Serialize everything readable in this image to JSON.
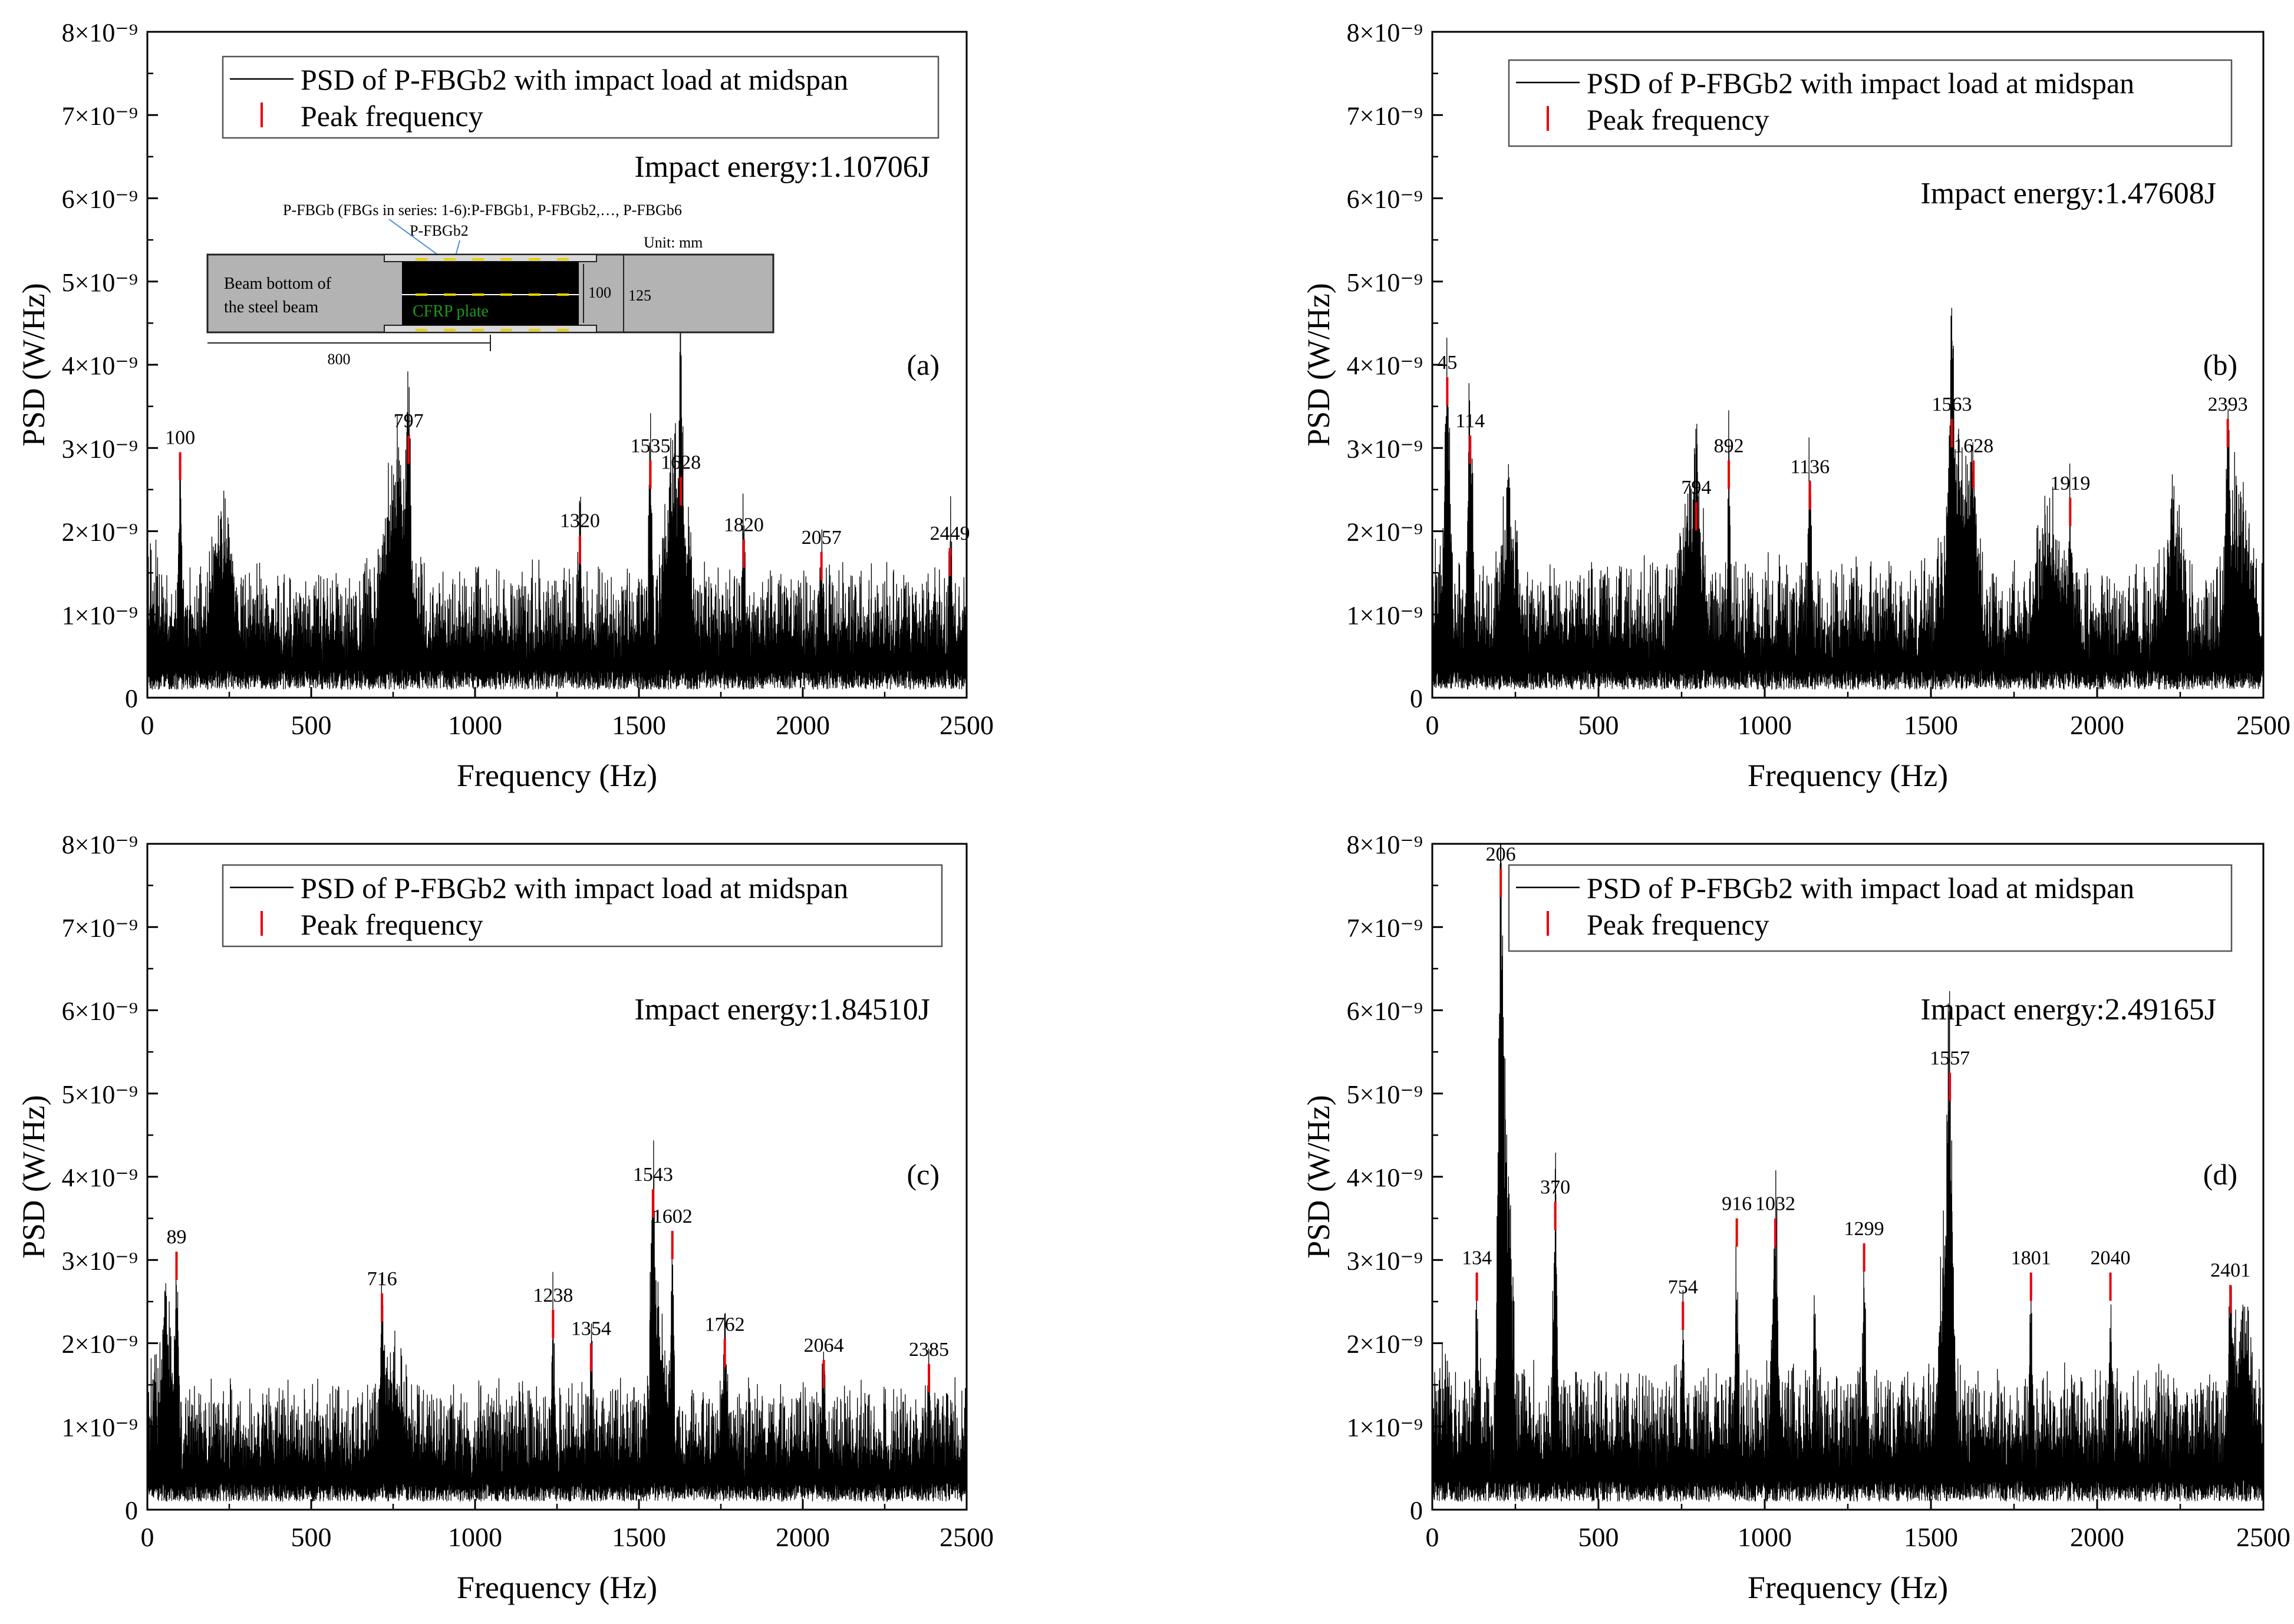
{
  "chart_data": [
    {
      "id": "a",
      "type": "line",
      "panel_label": "(a)",
      "xlabel": "Frequency (Hz)",
      "ylabel": "PSD (W/Hz)",
      "xlim": [
        0,
        2500
      ],
      "ylim": [
        0,
        8e-09
      ],
      "xticks": [
        "0",
        "500",
        "1000",
        "1500",
        "2000",
        "2500"
      ],
      "yticks": [
        "0",
        "1×10⁻⁹",
        "2×10⁻⁹",
        "3×10⁻⁹",
        "4×10⁻⁹",
        "5×10⁻⁹",
        "6×10⁻⁹",
        "7×10⁻⁹",
        "8×10⁻⁹"
      ],
      "legend": {
        "series": "PSD of P-FBGb2 with impact load at midspan",
        "peaks": "Peak frequency",
        "placement": "top-left"
      },
      "impact_energy_text": "Impact energy:1.10706J",
      "series": [
        {
          "name": "PSD of P-FBGb2 with impact load at midspan",
          "color": "#000000",
          "baseline": 7e-10,
          "noise": 5.5e-10,
          "resonances": [
            [
              100,
              2.6e-09,
              6
            ],
            [
              230,
              1.3e-09,
              30
            ],
            [
              760,
              2e-09,
              45
            ],
            [
              797,
              2.7e-09,
              6
            ],
            [
              1320,
              1.5e-09,
              5
            ],
            [
              1535,
              2.5e-09,
              6
            ],
            [
              1615,
              2e-09,
              40
            ],
            [
              1628,
              2.2e-09,
              6
            ],
            [
              1820,
              1.4e-09,
              5
            ],
            [
              2057,
              1.2e-09,
              5
            ],
            [
              2449,
              1.4e-09,
              5
            ]
          ]
        }
      ],
      "peaks": [
        {
          "f": 100,
          "v": 2.95e-09
        },
        {
          "f": 797,
          "v": 3.15e-09
        },
        {
          "f": 1320,
          "v": 1.95e-09
        },
        {
          "f": 1535,
          "v": 2.85e-09
        },
        {
          "f": 1628,
          "v": 2.65e-09
        },
        {
          "f": 1820,
          "v": 1.9e-09
        },
        {
          "f": 2057,
          "v": 1.75e-09
        },
        {
          "f": 2449,
          "v": 1.8e-09
        }
      ],
      "peak_labels": [
        "100",
        "797",
        "1320",
        "1535",
        "1628",
        "1820",
        "2057",
        "2449"
      ],
      "inset": {
        "title": "P-FBGb (FBGs in series: 1-6):P-FBGb1,  P-FBGb2,…,  P-FBGb6",
        "sensor": "P-FBGb2",
        "unit": "Unit: mm",
        "beam_line1": "Beam bottom of",
        "beam_line2": "the steel beam",
        "plate": "CFRP plate",
        "dim_inner": "100",
        "dim_outer": "125",
        "dim_length": "800",
        "beam_color": "#b3b3b3",
        "plate_color": "#000000",
        "plate_text_color": "#1a9a1a",
        "sensor_color": "#e8d000"
      }
    },
    {
      "id": "b",
      "type": "line",
      "panel_label": "(b)",
      "xlabel": "Frequency (Hz)",
      "ylabel": "PSD (W/Hz)",
      "xlim": [
        0,
        2500
      ],
      "ylim": [
        0,
        8e-09
      ],
      "xticks": [
        "0",
        "500",
        "1000",
        "1500",
        "2000",
        "2500"
      ],
      "yticks": [
        "0",
        "1×10⁻⁹",
        "2×10⁻⁹",
        "3×10⁻⁹",
        "4×10⁻⁹",
        "5×10⁻⁹",
        "6×10⁻⁹",
        "7×10⁻⁹",
        "8×10⁻⁹"
      ],
      "legend": {
        "series": "PSD of P-FBGb2 with impact load at midspan",
        "peaks": "Peak frequency",
        "placement": "top-right"
      },
      "impact_energy_text": "Impact energy:1.47608J",
      "series": [
        {
          "name": "PSD of P-FBGb2 with impact load at midspan",
          "color": "#000000",
          "baseline": 7e-10,
          "noise": 6e-10,
          "resonances": [
            [
              45,
              3.2e-09,
              10
            ],
            [
              114,
              2.6e-09,
              10
            ],
            [
              230,
              1.4e-09,
              25
            ],
            [
              780,
              1.4e-09,
              40
            ],
            [
              794,
              1.7e-09,
              5
            ],
            [
              892,
              2.4e-09,
              4
            ],
            [
              1136,
              2.2e-09,
              6
            ],
            [
              1563,
              2.7e-09,
              8
            ],
            [
              1580,
              1.9e-09,
              40
            ],
            [
              1628,
              1.5e-09,
              20
            ],
            [
              1860,
              1.2e-09,
              40
            ],
            [
              1919,
              1.6e-09,
              6
            ],
            [
              2230,
              1.4e-09,
              25
            ],
            [
              2393,
              2.4e-09,
              6
            ],
            [
              2430,
              1.6e-09,
              40
            ]
          ]
        }
      ],
      "peaks": [
        {
          "f": 45,
          "v": 3.85e-09
        },
        {
          "f": 114,
          "v": 3.15e-09
        },
        {
          "f": 794,
          "v": 2.35e-09
        },
        {
          "f": 892,
          "v": 2.85e-09
        },
        {
          "f": 1136,
          "v": 2.6e-09
        },
        {
          "f": 1563,
          "v": 3.35e-09
        },
        {
          "f": 1628,
          "v": 2.85e-09
        },
        {
          "f": 1919,
          "v": 2.4e-09
        },
        {
          "f": 2393,
          "v": 3.35e-09
        }
      ],
      "peak_labels": [
        "45",
        "114",
        "794",
        "892",
        "1136",
        "1563",
        "1628",
        "1919",
        "2393"
      ]
    },
    {
      "id": "c",
      "type": "line",
      "panel_label": "(c)",
      "xlabel": "Frequency (Hz)",
      "ylabel": "PSD (W/Hz)",
      "xlim": [
        0,
        2500
      ],
      "ylim": [
        0,
        8e-09
      ],
      "xticks": [
        "0",
        "500",
        "1000",
        "1500",
        "2000",
        "2500"
      ],
      "yticks": [
        "0",
        "1×10⁻⁹",
        "2×10⁻⁹",
        "3×10⁻⁹",
        "4×10⁻⁹",
        "5×10⁻⁹",
        "6×10⁻⁹",
        "7×10⁻⁹",
        "8×10⁻⁹"
      ],
      "legend": {
        "series": "PSD of P-FBGb2 with impact load at midspan",
        "peaks": "Peak frequency",
        "placement": "top-right"
      },
      "impact_energy_text": "Impact energy:1.84510J",
      "series": [
        {
          "name": "PSD of P-FBGb2 with impact load at midspan",
          "color": "#000000",
          "baseline": 6.5e-10,
          "noise": 5.5e-10,
          "resonances": [
            [
              60,
              1.6e-09,
              20
            ],
            [
              89,
              2e-09,
              6
            ],
            [
              716,
              1.8e-09,
              6
            ],
            [
              750,
              1e-09,
              40
            ],
            [
              1238,
              1.7e-09,
              5
            ],
            [
              1354,
              1.2e-09,
              5
            ],
            [
              1543,
              3e-09,
              8
            ],
            [
              1560,
              1.5e-09,
              30
            ],
            [
              1602,
              2.3e-09,
              6
            ],
            [
              1762,
              1.2e-09,
              5
            ],
            [
              2064,
              1e-09,
              5
            ],
            [
              2385,
              1e-09,
              5
            ]
          ]
        }
      ],
      "peaks": [
        {
          "f": 89,
          "v": 3.1e-09
        },
        {
          "f": 716,
          "v": 2.6e-09
        },
        {
          "f": 1238,
          "v": 2.4e-09
        },
        {
          "f": 1354,
          "v": 2e-09
        },
        {
          "f": 1543,
          "v": 3.85e-09
        },
        {
          "f": 1602,
          "v": 3.35e-09
        },
        {
          "f": 1762,
          "v": 2.05e-09
        },
        {
          "f": 2064,
          "v": 1.8e-09
        },
        {
          "f": 2385,
          "v": 1.75e-09
        }
      ],
      "peak_labels": [
        "89",
        "716",
        "1238",
        "1354",
        "1543",
        "1602",
        "1762",
        "2064",
        "2385"
      ]
    },
    {
      "id": "d",
      "type": "line",
      "panel_label": "(d)",
      "xlabel": "Frequency (Hz)",
      "ylabel": "PSD (W/Hz)",
      "xlim": [
        0,
        2500
      ],
      "ylim": [
        0,
        8e-09
      ],
      "xticks": [
        "0",
        "500",
        "1000",
        "1500",
        "2000",
        "2500"
      ],
      "yticks": [
        "0",
        "1×10⁻⁹",
        "2×10⁻⁹",
        "3×10⁻⁹",
        "4×10⁻⁹",
        "5×10⁻⁹",
        "6×10⁻⁹",
        "7×10⁻⁹",
        "8×10⁻⁹"
      ],
      "legend": {
        "series": "PSD of P-FBGb2 with impact load at midspan",
        "peaks": "Peak frequency",
        "placement": "top-right"
      },
      "impact_energy_text": "Impact energy:2.49165J",
      "series": [
        {
          "name": "PSD of P-FBGb2 with impact load at midspan",
          "color": "#000000",
          "baseline": 7.5e-10,
          "noise": 6e-10,
          "resonances": [
            [
              134,
              1.6e-09,
              6
            ],
            [
              206,
              6.7e-09,
              10
            ],
            [
              225,
              3.5e-09,
              18
            ],
            [
              370,
              2.8e-09,
              8
            ],
            [
              754,
              1.6e-09,
              5
            ],
            [
              916,
              2.6e-09,
              5
            ],
            [
              1032,
              2.5e-09,
              12
            ],
            [
              1150,
              2.2e-09,
              4
            ],
            [
              1299,
              2.2e-09,
              5
            ],
            [
              1557,
              4.4e-09,
              10
            ],
            [
              1540,
              2e-09,
              25
            ],
            [
              1801,
              1.8e-09,
              5
            ],
            [
              2040,
              1.9e-09,
              5
            ],
            [
              2401,
              1.7e-09,
              8
            ],
            [
              2440,
              1.3e-09,
              30
            ]
          ]
        }
      ],
      "peaks": [
        {
          "f": 134,
          "v": 2.85e-09
        },
        {
          "f": 206,
          "v": 7.7e-09
        },
        {
          "f": 370,
          "v": 3.7e-09
        },
        {
          "f": 754,
          "v": 2.5e-09
        },
        {
          "f": 916,
          "v": 3.5e-09
        },
        {
          "f": 1032,
          "v": 3.5e-09
        },
        {
          "f": 1299,
          "v": 3.2e-09
        },
        {
          "f": 1557,
          "v": 5.25e-09
        },
        {
          "f": 1801,
          "v": 2.85e-09
        },
        {
          "f": 2040,
          "v": 2.85e-09
        },
        {
          "f": 2401,
          "v": 2.7e-09
        }
      ],
      "peak_labels": [
        "134",
        "206",
        "370",
        "754",
        "916",
        "1032",
        "1299",
        "1557",
        "1801",
        "2040",
        "2401"
      ]
    }
  ],
  "colors": {
    "signal": "#000000",
    "peak_marker": "#e8000b",
    "legend_border": "#555555"
  }
}
